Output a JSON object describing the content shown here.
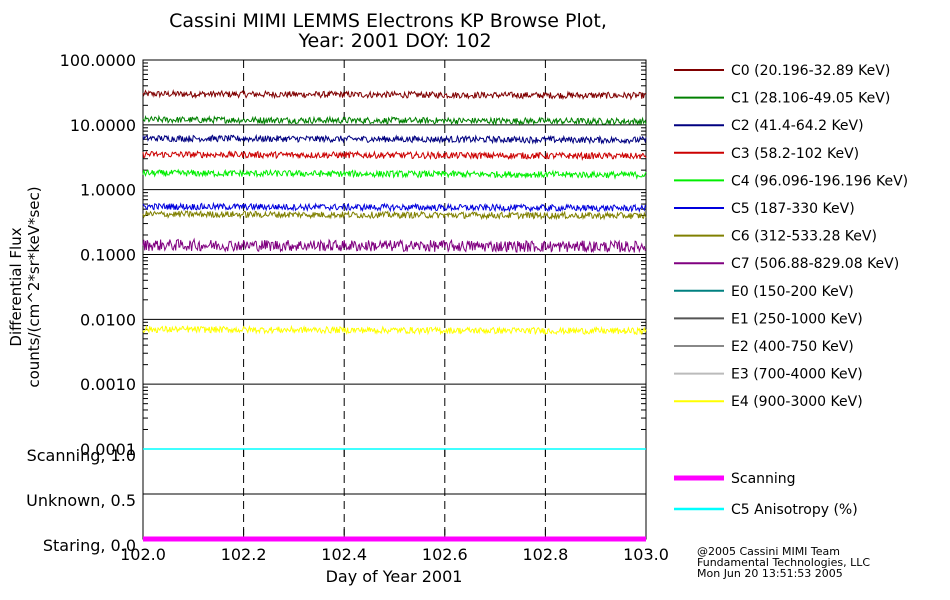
{
  "chart_data": [
    {
      "type": "line",
      "title_line1": "Cassini MIMI LEMMS Electrons KP Browse Plot,",
      "title_line2": "Year: 2001 DOY: 102",
      "ylabel_line1": "Differential Flux",
      "ylabel_line2": "counts/(cm^2*sr*keV*sec)",
      "y_scale": "log",
      "ylim": [
        0.0001,
        100
      ],
      "y_tick_labels": [
        "100.0000",
        "10.0000",
        "1.0000",
        "0.1000",
        "0.0100",
        "0.0010",
        "0.0001"
      ],
      "xlim": [
        102.0,
        103.0
      ],
      "x_gridlines": [
        102.2,
        102.4,
        102.6,
        102.8
      ],
      "legend_position": "right",
      "series": [
        {
          "name": "C0 (20.196-32.89 KeV)",
          "color": "#800000",
          "mean": 30
        },
        {
          "name": "C1 (28.106-49.05 KeV)",
          "color": "#008000",
          "mean": 12
        },
        {
          "name": "C2 (41.4-64.2 KeV)",
          "color": "#000080",
          "mean": 6.2
        },
        {
          "name": "C3 (58.2-102 KeV)",
          "color": "#cc0000",
          "mean": 3.5
        },
        {
          "name": "C4 (96.096-196.196 KeV)",
          "color": "#00ee00",
          "mean": 1.8
        },
        {
          "name": "C5 (187-330 KeV)",
          "color": "#0000dd",
          "mean": 0.55
        },
        {
          "name": "C6 (312-533.28 KeV)",
          "color": "#808000",
          "mean": 0.42
        },
        {
          "name": "C7 (506.88-829.08 KeV)",
          "color": "#800080",
          "mean": 0.14
        },
        {
          "name": "E0 (150-200 KeV)",
          "color": "#008080",
          "mean": null
        },
        {
          "name": "E1 (250-1000 KeV)",
          "color": "#555555",
          "mean": null
        },
        {
          "name": "E2 (400-750 KeV)",
          "color": "#888888",
          "mean": null
        },
        {
          "name": "E3 (700-4000 KeV)",
          "color": "#bbbbbb",
          "mean": null
        },
        {
          "name": "E4 (900-3000 KeV)",
          "color": "#ffff00",
          "mean": 0.007
        }
      ]
    },
    {
      "type": "line",
      "y_tick_labels": [
        "Scanning, 1.0",
        "Unknown, 0.5",
        "Staring, 0.0"
      ],
      "ylim": [
        0.0,
        1.0
      ],
      "xlim": [
        102.0,
        103.0
      ],
      "x_tick_labels": [
        "102.0",
        "102.2",
        "102.4",
        "102.6",
        "102.8",
        "103.0"
      ],
      "xlabel": "Day of Year 2001",
      "series": [
        {
          "name": "Scanning",
          "color": "#ff00ff",
          "value": 0.0
        },
        {
          "name": "C5 Anisotropy (%)",
          "color": "#00ffff",
          "value": 1.0
        }
      ]
    }
  ],
  "footer": {
    "line1": "@2005 Cassini MIMI Team",
    "line2": "Fundamental Technologies, LLC",
    "line3": "Mon Jun 20 13:51:53 2005"
  }
}
